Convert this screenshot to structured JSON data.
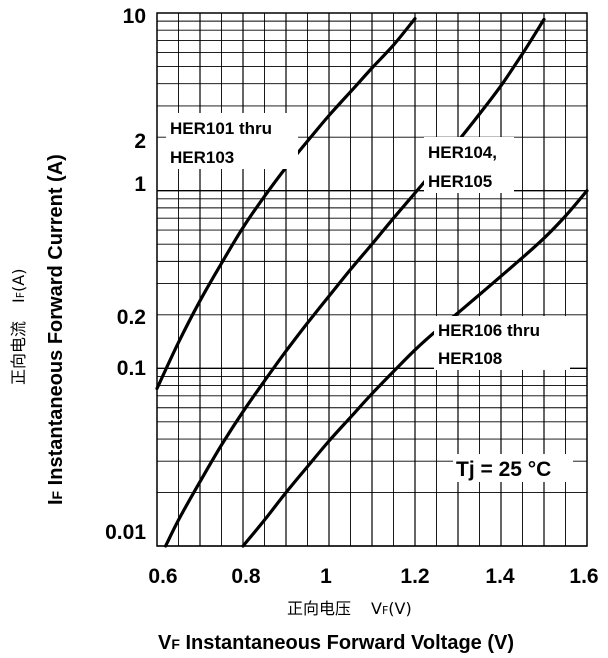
{
  "chart_data": {
    "type": "line",
    "x_scale": "linear",
    "y_scale": "log",
    "xlim": [
      0.6,
      1.6
    ],
    "ylim": [
      0.01,
      10
    ],
    "x_ticks": [
      {
        "value": 0.6,
        "label": "0.6"
      },
      {
        "value": 0.8,
        "label": "0.8"
      },
      {
        "value": 1.0,
        "label": "1"
      },
      {
        "value": 1.2,
        "label": "1.2"
      },
      {
        "value": 1.4,
        "label": "1.4"
      },
      {
        "value": 1.6,
        "label": "1.6"
      }
    ],
    "y_ticks": [
      {
        "value": 10,
        "label": "10"
      },
      {
        "value": 2,
        "label": "2"
      },
      {
        "value": 1,
        "label": "1"
      },
      {
        "value": 0.2,
        "label": "0.2"
      },
      {
        "value": 0.1,
        "label": "0.1"
      },
      {
        "value": 0.01,
        "label": "0.01"
      }
    ],
    "xlabel_cn": "正向电压",
    "xlabel_cn_sym": "V",
    "xlabel_cn_sub": "F",
    "xlabel_cn_unit": "(V)",
    "xlabel_sym": "V",
    "xlabel_sub": "F",
    "xlabel_text": " Instantaneous Forward Voltage (V)",
    "ylabel_cn": "正向电流",
    "ylabel_cn_sym": "I",
    "ylabel_cn_sub": "F",
    "ylabel_cn_unit": "(A)",
    "ylabel_sym": "I",
    "ylabel_sub": "F",
    "ylabel_text": " Instantaneous Forward Current (A)",
    "grid": true,
    "annotation": "Tj = 25 °C",
    "series": [
      {
        "name_lines": [
          "HER101 thru",
          "HER103"
        ],
        "x": [
          0.6,
          0.65,
          0.7,
          0.75,
          0.8,
          0.85,
          0.9,
          0.95,
          1.0,
          1.05,
          1.1,
          1.15,
          1.2
        ],
        "y": [
          0.077,
          0.14,
          0.24,
          0.39,
          0.62,
          0.93,
          1.35,
          1.9,
          2.65,
          3.6,
          4.9,
          6.6,
          9.3
        ]
      },
      {
        "name_lines": [
          "HER104,",
          "HER105"
        ],
        "x": [
          0.62,
          0.65,
          0.7,
          0.75,
          0.8,
          0.85,
          0.9,
          0.95,
          1.0,
          1.05,
          1.1,
          1.15,
          1.2,
          1.25,
          1.3,
          1.35,
          1.4,
          1.45,
          1.5
        ],
        "y": [
          0.01,
          0.014,
          0.023,
          0.037,
          0.057,
          0.085,
          0.125,
          0.18,
          0.255,
          0.36,
          0.5,
          0.7,
          0.97,
          1.35,
          1.9,
          2.7,
          3.9,
          5.9,
          9.2
        ]
      },
      {
        "name_lines": [
          "HER106 thru",
          "HER108"
        ],
        "x": [
          0.8,
          0.85,
          0.9,
          0.95,
          1.0,
          1.05,
          1.1,
          1.15,
          1.2,
          1.25,
          1.3,
          1.35,
          1.4,
          1.45,
          1.5,
          1.55,
          1.6
        ],
        "y": [
          0.01,
          0.014,
          0.02,
          0.028,
          0.039,
          0.053,
          0.072,
          0.096,
          0.127,
          0.163,
          0.205,
          0.26,
          0.33,
          0.42,
          0.54,
          0.72,
          1.0
        ]
      }
    ]
  }
}
